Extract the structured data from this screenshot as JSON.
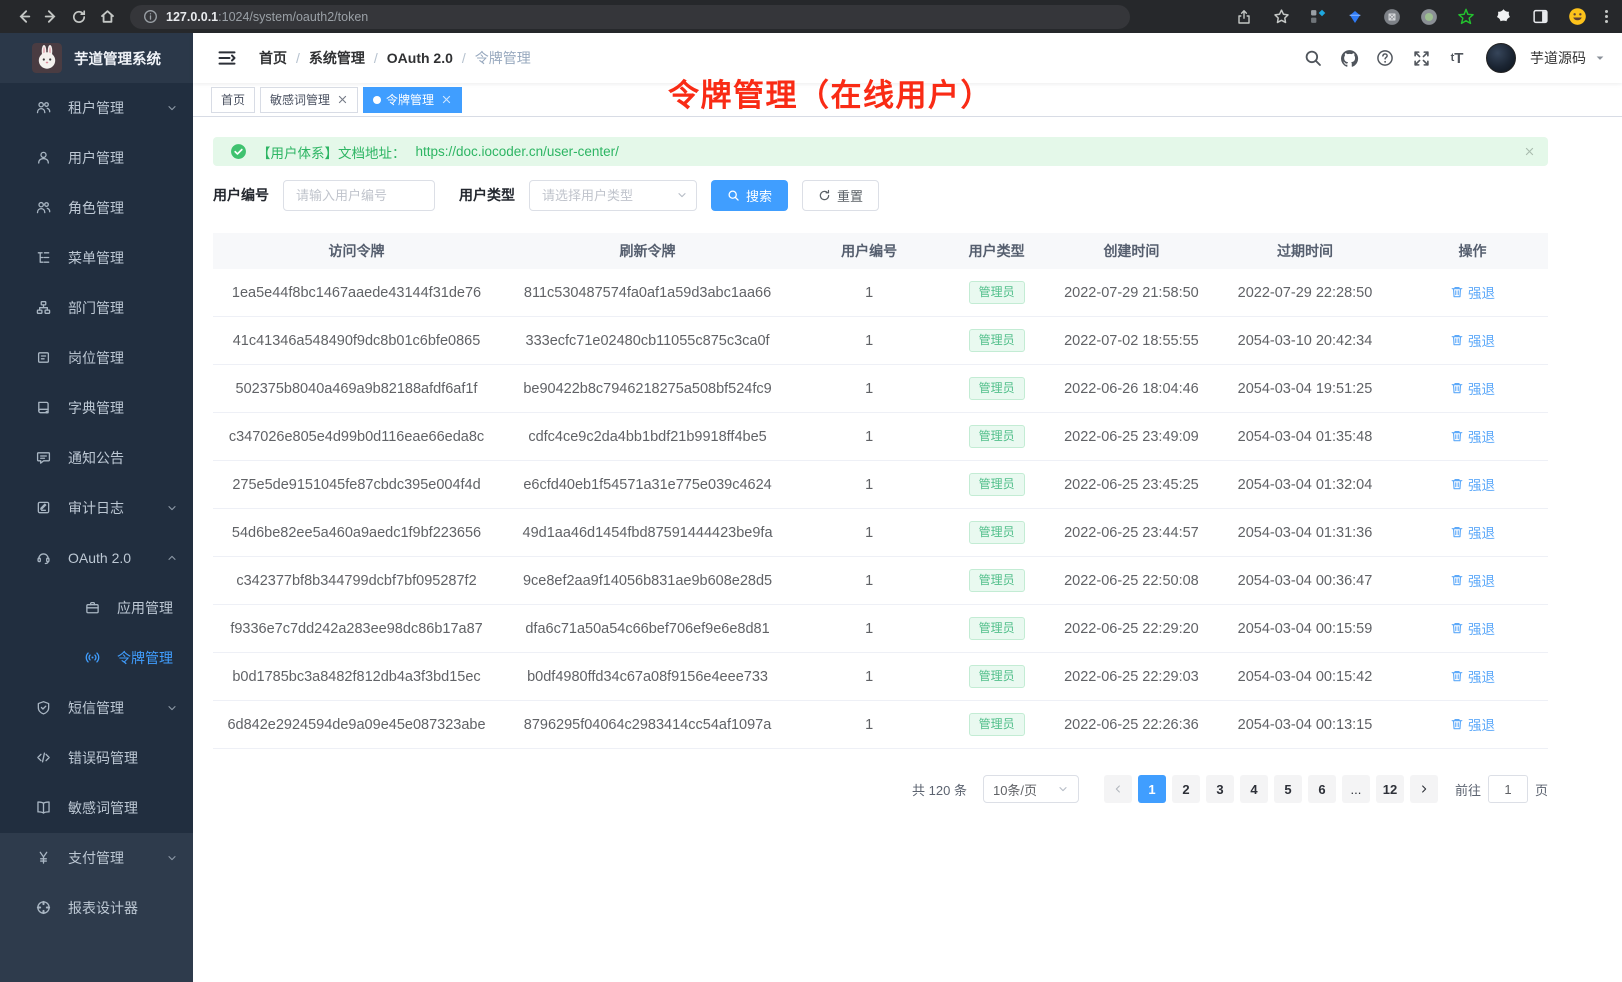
{
  "colors": {
    "accent": "#409eff",
    "success": "#53c08c",
    "alert_green": "#2db563",
    "danger_red_annotation": "#f92b15",
    "sidebar_dark": "#212e3f",
    "sidebar_light": "#2e3b4c"
  },
  "browser": {
    "url_host": "127.0.0.1",
    "url_path": ":1024/system/oauth2/token",
    "extension_badge": "9"
  },
  "sidebar": {
    "title": "芋道管理系统",
    "items": [
      {
        "icon": "tenant-users-icon",
        "label": "租户管理",
        "chevron": "down"
      },
      {
        "icon": "user-icon",
        "label": "用户管理"
      },
      {
        "icon": "role-icon",
        "label": "角色管理"
      },
      {
        "icon": "menu-tree-icon",
        "label": "菜单管理"
      },
      {
        "icon": "dept-org-icon",
        "label": "部门管理"
      },
      {
        "icon": "post-badge-icon",
        "label": "岗位管理"
      },
      {
        "icon": "dict-book-icon",
        "label": "字典管理"
      },
      {
        "icon": "notice-bubble-icon",
        "label": "通知公告"
      },
      {
        "icon": "audit-edit-icon",
        "label": "审计日志",
        "chevron": "down"
      },
      {
        "icon": "oauth-headset-icon",
        "label": "OAuth 2.0",
        "chevron": "up"
      },
      {
        "icon": "app-briefcase-icon",
        "label": "应用管理",
        "nested": true
      },
      {
        "icon": "token-broadcast-icon",
        "label": "令牌管理",
        "nested": true,
        "active": true
      },
      {
        "icon": "sms-shield-icon",
        "label": "短信管理",
        "chevron": "down"
      },
      {
        "icon": "errcode-code-icon",
        "label": "错误码管理"
      },
      {
        "icon": "sensitive-book-icon",
        "label": "敏感词管理"
      },
      {
        "icon": "pay-yen-icon",
        "label": "支付管理",
        "chevron": "down",
        "section": 2
      },
      {
        "icon": "report-compass-icon",
        "label": "报表设计器",
        "section": 2
      }
    ]
  },
  "navbar": {
    "breadcrumb": [
      "首页",
      "系统管理",
      "OAuth 2.0",
      "令牌管理"
    ],
    "username": "芋道源码"
  },
  "annotation": {
    "text": "令牌管理（在线用户）"
  },
  "tabs": [
    {
      "label": "首页",
      "closable": false,
      "active": false
    },
    {
      "label": "敏感词管理",
      "closable": true,
      "active": false
    },
    {
      "label": "令牌管理",
      "closable": true,
      "active": true
    }
  ],
  "alert": {
    "prefix": "【用户体系】文档地址：",
    "link": "https://doc.iocoder.cn/user-center/"
  },
  "filters": {
    "user_id_label": "用户编号",
    "user_id_placeholder": "请输入用户编号",
    "user_type_label": "用户类型",
    "user_type_placeholder": "请选择用户类型",
    "search_label": "搜索",
    "reset_label": "重置"
  },
  "table": {
    "columns": [
      "访问令牌",
      "刷新令牌",
      "用户编号",
      "用户类型",
      "创建时间",
      "过期时间",
      "操作"
    ],
    "action_label": "强退",
    "rows": [
      {
        "access_token": "1ea5e44f8bc1467aaede43144f31de76",
        "refresh_token": "811c530487574fa0af1a59d3abc1aa66",
        "user_id": "1",
        "user_type": "管理员",
        "create_time": "2022-07-29 21:58:50",
        "expire_time": "2022-07-29 22:28:50"
      },
      {
        "access_token": "41c41346a548490f9dc8b01c6bfe0865",
        "refresh_token": "333ecfc71e02480cb11055c875c3ca0f",
        "user_id": "1",
        "user_type": "管理员",
        "create_time": "2022-07-02 18:55:55",
        "expire_time": "2054-03-10 20:42:34"
      },
      {
        "access_token": "502375b8040a469a9b82188afdf6af1f",
        "refresh_token": "be90422b8c7946218275a508bf524fc9",
        "user_id": "1",
        "user_type": "管理员",
        "create_time": "2022-06-26 18:04:46",
        "expire_time": "2054-03-04 19:51:25"
      },
      {
        "access_token": "c347026e805e4d99b0d116eae66eda8c",
        "refresh_token": "cdfc4ce9c2da4bb1bdf21b9918ff4be5",
        "user_id": "1",
        "user_type": "管理员",
        "create_time": "2022-06-25 23:49:09",
        "expire_time": "2054-03-04 01:35:48"
      },
      {
        "access_token": "275e5de9151045fe87cbdc395e004f4d",
        "refresh_token": "e6cfd40eb1f54571a31e775e039c4624",
        "user_id": "1",
        "user_type": "管理员",
        "create_time": "2022-06-25 23:45:25",
        "expire_time": "2054-03-04 01:32:04"
      },
      {
        "access_token": "54d6be82ee5a460a9aedc1f9bf223656",
        "refresh_token": "49d1aa46d1454fbd87591444423be9fa",
        "user_id": "1",
        "user_type": "管理员",
        "create_time": "2022-06-25 23:44:57",
        "expire_time": "2054-03-04 01:31:36"
      },
      {
        "access_token": "c342377bf8b344799dcbf7bf095287f2",
        "refresh_token": "9ce8ef2aa9f14056b831ae9b608e28d5",
        "user_id": "1",
        "user_type": "管理员",
        "create_time": "2022-06-25 22:50:08",
        "expire_time": "2054-03-04 00:36:47"
      },
      {
        "access_token": "f9336e7c7dd242a283ee98dc86b17a87",
        "refresh_token": "dfa6c71a50a54c66bef706ef9e6e8d81",
        "user_id": "1",
        "user_type": "管理员",
        "create_time": "2022-06-25 22:29:20",
        "expire_time": "2054-03-04 00:15:59"
      },
      {
        "access_token": "b0d1785bc3a8482f812db4a3f3bd15ec",
        "refresh_token": "b0df4980ffd34c67a08f9156e4eee733",
        "user_id": "1",
        "user_type": "管理员",
        "create_time": "2022-06-25 22:29:03",
        "expire_time": "2054-03-04 00:15:42"
      },
      {
        "access_token": "6d842e2924594de9a09e45e087323abe",
        "refresh_token": "8796295f04064c2983414cc54af1097a",
        "user_id": "1",
        "user_type": "管理员",
        "create_time": "2022-06-25 22:26:36",
        "expire_time": "2054-03-04 00:13:15"
      }
    ]
  },
  "pagination": {
    "total_label": "共 120 条",
    "page_size_label": "10条/页",
    "pages": [
      "1",
      "2",
      "3",
      "4",
      "5",
      "6",
      "...",
      "12"
    ],
    "active_page": "1",
    "jump_prefix": "前往",
    "jump_value": "1",
    "jump_suffix": "页"
  }
}
